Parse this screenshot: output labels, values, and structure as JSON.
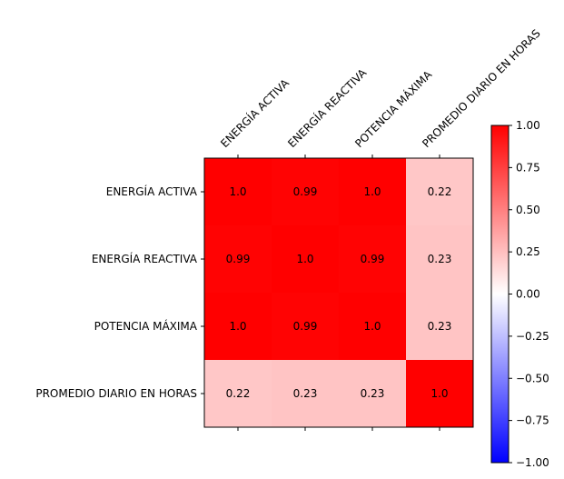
{
  "chart_data": {
    "type": "heatmap",
    "title": "",
    "row_labels": [
      "ENERGÍA ACTIVA",
      "ENERGÍA REACTIVA",
      "POTENCIA MÁXIMA",
      "PROMEDIO DIARIO EN HORAS"
    ],
    "col_labels": [
      "ENERGÍA ACTIVA",
      "ENERGÍA REACTIVA",
      "POTENCIA MÁXIMA",
      "PROMEDIO DIARIO EN HORAS"
    ],
    "values": [
      [
        1.0,
        0.99,
        1.0,
        0.22
      ],
      [
        0.99,
        1.0,
        0.99,
        0.23
      ],
      [
        1.0,
        0.99,
        1.0,
        0.23
      ],
      [
        0.22,
        0.23,
        0.23,
        1.0
      ]
    ],
    "cell_labels": [
      [
        "1.0",
        "0.99",
        "1.0",
        "0.22"
      ],
      [
        "0.99",
        "1.0",
        "0.99",
        "0.23"
      ],
      [
        "1.0",
        "0.99",
        "1.0",
        "0.23"
      ],
      [
        "0.22",
        "0.23",
        "0.23",
        "1.0"
      ]
    ],
    "colormap": "bwr",
    "colormap_colors": {
      "low": "#0000ff",
      "mid": "#ffffff",
      "high": "#ff0000"
    },
    "vmin": -1.0,
    "vmax": 1.0,
    "colorbar_ticks": [
      "1.00",
      "0.75",
      "0.50",
      "0.25",
      "0.00",
      "−0.25",
      "−0.50",
      "−0.75",
      "−1.00"
    ],
    "colorbar_tick_values": [
      1.0,
      0.75,
      0.5,
      0.25,
      0.0,
      -0.25,
      -0.5,
      -0.75,
      -1.0
    ],
    "x_ticks_position": "top",
    "colorbar_position": "right",
    "grid": false
  }
}
